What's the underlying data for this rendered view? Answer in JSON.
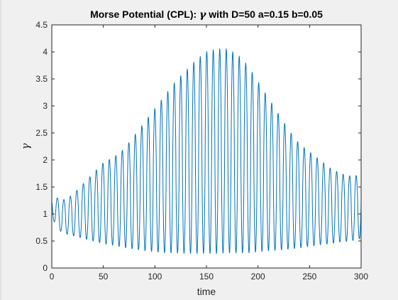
{
  "chart_data": {
    "type": "line",
    "title": "Morse Potential (CPL): γ with D=50 a=0.15 b=0.05",
    "title_prefix": "Morse Potential (CPL): ",
    "title_symbol": "γ",
    "title_suffix": " with D=50 a=0.15 b=0.05",
    "xlabel": "time",
    "ylabel": "γ",
    "xlim": [
      0,
      300
    ],
    "ylim": [
      0,
      4.5
    ],
    "xticks": [
      "0",
      "50",
      "100",
      "150",
      "200",
      "250",
      "300"
    ],
    "yticks": [
      "0",
      "0.5",
      "1",
      "1.5",
      "2",
      "2.5",
      "3",
      "3.5",
      "4",
      "4.5"
    ],
    "grid": false,
    "line_color": "#0072bd",
    "series": [
      {
        "name": "gamma",
        "oscillation_period": 6.3,
        "envelope_times": [
          0,
          5,
          10,
          20,
          30,
          40,
          50,
          60,
          70,
          80,
          90,
          100,
          110,
          120,
          130,
          140,
          150,
          160,
          170,
          180,
          190,
          200,
          210,
          220,
          230,
          240,
          250,
          260,
          270,
          280,
          290,
          300
        ],
        "envelope_max": [
          1.27,
          1.3,
          1.25,
          1.35,
          1.55,
          1.75,
          1.95,
          2.05,
          2.2,
          2.45,
          2.7,
          2.95,
          3.2,
          3.45,
          3.65,
          3.85,
          4.0,
          4.05,
          4.05,
          3.95,
          3.75,
          3.45,
          3.15,
          2.85,
          2.55,
          2.3,
          2.15,
          2.0,
          1.85,
          1.75,
          1.7,
          1.72
        ],
        "envelope_min": [
          0.95,
          0.75,
          0.65,
          0.6,
          0.55,
          0.5,
          0.45,
          0.42,
          0.38,
          0.35,
          0.32,
          0.3,
          0.28,
          0.28,
          0.27,
          0.27,
          0.27,
          0.27,
          0.28,
          0.28,
          0.28,
          0.3,
          0.32,
          0.33,
          0.35,
          0.37,
          0.4,
          0.43,
          0.45,
          0.48,
          0.5,
          0.55
        ]
      }
    ]
  }
}
